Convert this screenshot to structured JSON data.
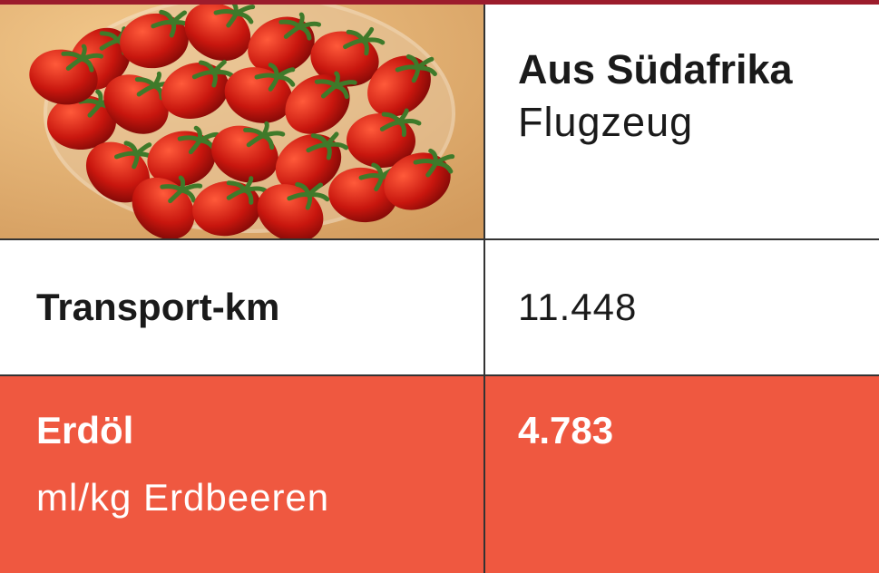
{
  "table": {
    "header": {
      "title": "Aus Südafrika",
      "subtitle": "Flugzeug"
    },
    "rows": [
      {
        "label": "Transport-km",
        "value": "11.448"
      },
      {
        "label": "Erdöl",
        "sublabel": "ml/kg Erdbeeren",
        "value": "4.783"
      }
    ]
  }
}
